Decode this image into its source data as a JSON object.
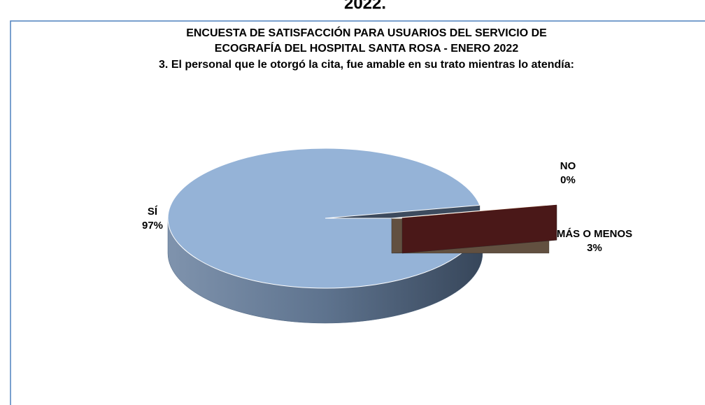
{
  "page_caption": "2022.",
  "chart_data": {
    "type": "pie3d",
    "title": [
      "ENCUESTA DE SATISFACCIÓN PARA USUARIOS DEL SERVICIO DE",
      "ECOGRAFÍA DEL HOSPITAL SANTA ROSA - ENERO 2022"
    ],
    "subtitle": "3. El personal que le otorgó la cita, fue amable en su trato mientras lo atendía:",
    "categories": [
      "MÁS O MENOS",
      "NO",
      "SÍ"
    ],
    "values": [
      3,
      0,
      97
    ],
    "value_labels": [
      "3%",
      "0%",
      "97%"
    ],
    "colors": [
      "#fac090",
      "#7a2a2a",
      "#95b3d7"
    ],
    "side_colors": [
      "#625040",
      "#4a1818",
      "#4e6580"
    ]
  }
}
